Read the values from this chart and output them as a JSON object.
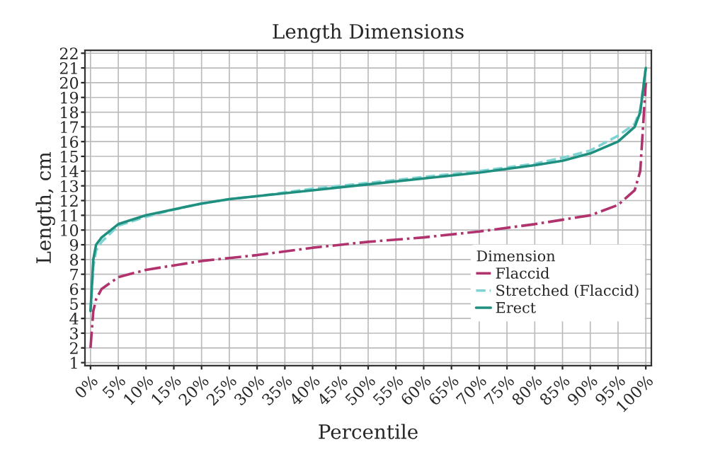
{
  "chart_data": {
    "type": "line",
    "title": "Length Dimensions",
    "xlabel": "Percentile",
    "ylabel": "Length, cm",
    "legend_title": "Dimension",
    "legend": "bottom right",
    "grid": true,
    "marker": "none",
    "xlim": [
      -1,
      101
    ],
    "ylim": [
      0.8,
      22.2
    ],
    "xticks": [
      {
        "value": 0,
        "label": "0%"
      },
      {
        "value": 5,
        "label": "5%"
      },
      {
        "value": 10,
        "label": "10%"
      },
      {
        "value": 15,
        "label": "15%"
      },
      {
        "value": 20,
        "label": "20%"
      },
      {
        "value": 25,
        "label": "25%"
      },
      {
        "value": 30,
        "label": "30%"
      },
      {
        "value": 35,
        "label": "35%"
      },
      {
        "value": 40,
        "label": "40%"
      },
      {
        "value": 45,
        "label": "45%"
      },
      {
        "value": 50,
        "label": "50%"
      },
      {
        "value": 55,
        "label": "55%"
      },
      {
        "value": 60,
        "label": "60%"
      },
      {
        "value": 65,
        "label": "65%"
      },
      {
        "value": 70,
        "label": "70%"
      },
      {
        "value": 75,
        "label": "75%"
      },
      {
        "value": 80,
        "label": "80%"
      },
      {
        "value": 85,
        "label": "85%"
      },
      {
        "value": 90,
        "label": "90%"
      },
      {
        "value": 95,
        "label": "95%"
      },
      {
        "value": 100,
        "label": "100%"
      }
    ],
    "yticks": [
      1,
      2,
      3,
      4,
      5,
      6,
      7,
      8,
      9,
      10,
      11,
      12,
      13,
      14,
      15,
      16,
      17,
      18,
      19,
      20,
      21,
      22
    ],
    "x": [
      0,
      0.5,
      1,
      2,
      5,
      10,
      15,
      20,
      25,
      30,
      40,
      50,
      60,
      70,
      80,
      85,
      90,
      95,
      98,
      99,
      100
    ],
    "series": [
      {
        "name": "Flaccid",
        "color": "#b0336e",
        "line_style": "dashdot",
        "values": [
          2,
          4.5,
          5.3,
          6,
          6.8,
          7.3,
          7.6,
          7.9,
          8.1,
          8.3,
          8.8,
          9.2,
          9.5,
          9.9,
          10.4,
          10.7,
          11,
          11.7,
          12.7,
          14,
          20
        ]
      },
      {
        "name": "Stretched (Flaccid)",
        "color": "#7fd3d3",
        "line_style": "dashed",
        "values": [
          4.5,
          7.5,
          8.6,
          9.2,
          10.3,
          10.9,
          11.4,
          11.8,
          12.1,
          12.3,
          12.8,
          13.2,
          13.6,
          14,
          14.5,
          14.9,
          15.4,
          16.4,
          17.2,
          18.2,
          21
        ]
      },
      {
        "name": "Erect",
        "color": "#1f8f80",
        "line_style": "solid",
        "values": [
          4.5,
          8,
          9,
          9.5,
          10.4,
          11,
          11.4,
          11.8,
          12.1,
          12.3,
          12.7,
          13.1,
          13.5,
          13.9,
          14.4,
          14.7,
          15.2,
          16,
          17,
          18,
          21
        ]
      }
    ]
  }
}
